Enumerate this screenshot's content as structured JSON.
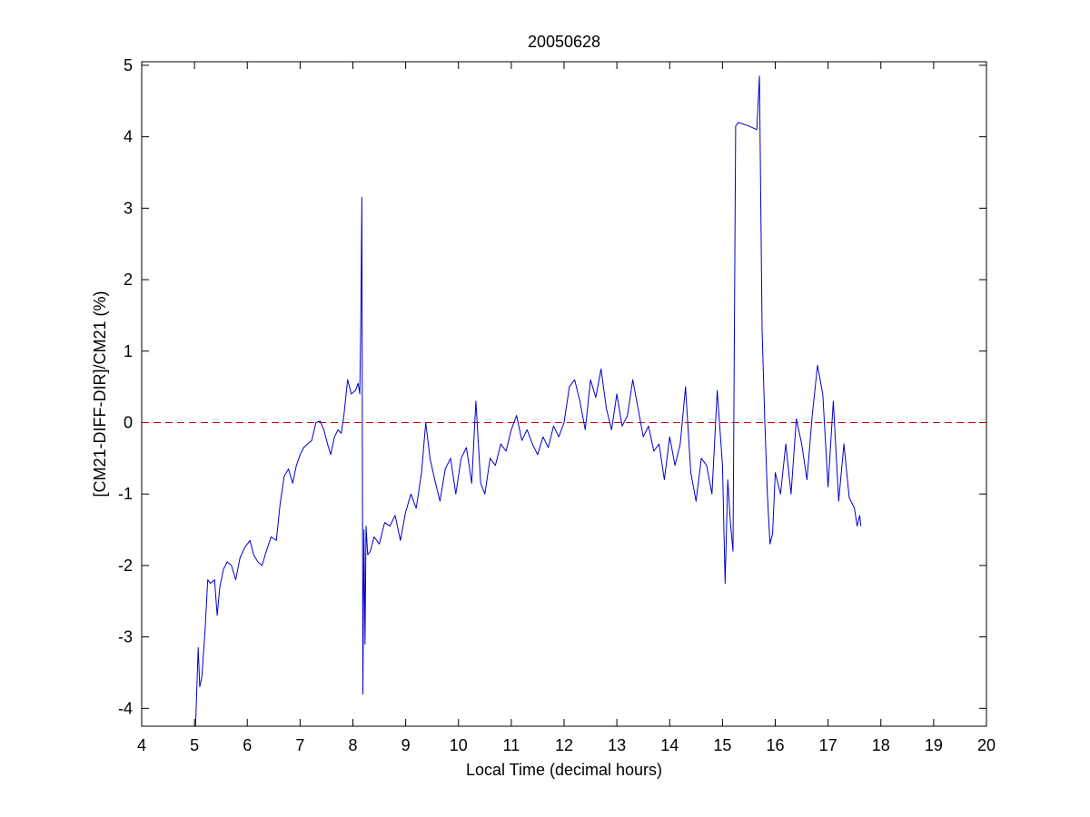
{
  "chart_data": {
    "type": "line",
    "title": "20050628",
    "xlabel": "Local Time (decimal hours)",
    "ylabel": "[CM21-DIFF-DIR]/CM21 (%)",
    "xlim": [
      4,
      20
    ],
    "ylim": [
      -4.25,
      5.05
    ],
    "xticks": [
      4,
      5,
      6,
      7,
      8,
      9,
      10,
      11,
      12,
      13,
      14,
      15,
      16,
      17,
      18,
      19,
      20
    ],
    "yticks": [
      -4,
      -3,
      -2,
      -1,
      0,
      1,
      2,
      3,
      4,
      5
    ],
    "grid": false,
    "legend": "none",
    "reference_line": {
      "y": 0,
      "style": "dashed",
      "color": "#cc0000"
    },
    "series": [
      {
        "color": "#0000cc",
        "x": [
          5.02,
          5.07,
          5.1,
          5.14,
          5.2,
          5.25,
          5.3,
          5.38,
          5.43,
          5.48,
          5.55,
          5.62,
          5.7,
          5.78,
          5.86,
          5.95,
          6.05,
          6.12,
          6.2,
          6.28,
          6.36,
          6.45,
          6.55,
          6.62,
          6.7,
          6.78,
          6.86,
          6.93,
          7.0,
          7.07,
          7.14,
          7.22,
          7.3,
          7.38,
          7.45,
          7.52,
          7.58,
          7.65,
          7.72,
          7.78,
          7.83,
          7.9,
          7.97,
          8.05,
          8.1,
          8.13,
          8.15,
          8.17,
          8.19,
          8.21,
          8.23,
          8.25,
          8.28,
          8.33,
          8.4,
          8.5,
          8.6,
          8.7,
          8.8,
          8.9,
          9.0,
          9.1,
          9.2,
          9.3,
          9.38,
          9.46,
          9.55,
          9.65,
          9.75,
          9.85,
          9.95,
          10.05,
          10.15,
          10.25,
          10.33,
          10.42,
          10.5,
          10.6,
          10.7,
          10.8,
          10.9,
          11.0,
          11.1,
          11.2,
          11.3,
          11.4,
          11.5,
          11.6,
          11.7,
          11.8,
          11.9,
          12.0,
          12.1,
          12.2,
          12.3,
          12.4,
          12.5,
          12.6,
          12.7,
          12.8,
          12.9,
          13.0,
          13.1,
          13.2,
          13.3,
          13.4,
          13.5,
          13.6,
          13.7,
          13.8,
          13.9,
          14.0,
          14.1,
          14.2,
          14.3,
          14.4,
          14.5,
          14.6,
          14.7,
          14.8,
          14.9,
          15.0,
          15.05,
          15.1,
          15.15,
          15.2,
          15.25,
          15.3,
          15.5,
          15.65,
          15.7,
          15.75,
          15.8,
          15.85,
          15.9,
          15.95,
          16.0,
          16.1,
          16.2,
          16.3,
          16.4,
          16.5,
          16.6,
          16.7,
          16.8,
          16.9,
          17.0,
          17.1,
          17.2,
          17.3,
          17.4,
          17.5,
          17.55,
          17.6,
          17.62
        ],
        "y": [
          -4.25,
          -3.15,
          -3.7,
          -3.55,
          -2.9,
          -2.2,
          -2.25,
          -2.2,
          -2.7,
          -2.3,
          -2.05,
          -1.95,
          -2.0,
          -2.2,
          -1.9,
          -1.75,
          -1.65,
          -1.85,
          -1.95,
          -2.0,
          -1.8,
          -1.6,
          -1.65,
          -1.15,
          -0.75,
          -0.65,
          -0.85,
          -0.6,
          -0.45,
          -0.35,
          -0.3,
          -0.25,
          0.0,
          0.02,
          -0.1,
          -0.3,
          -0.45,
          -0.2,
          -0.1,
          -0.15,
          0.1,
          0.6,
          0.4,
          0.45,
          0.55,
          0.4,
          1.4,
          3.15,
          -3.8,
          -1.5,
          -3.1,
          -1.45,
          -1.85,
          -1.8,
          -1.6,
          -1.7,
          -1.4,
          -1.45,
          -1.3,
          -1.65,
          -1.25,
          -1.0,
          -1.2,
          -0.7,
          0.0,
          -0.5,
          -0.8,
          -1.1,
          -0.65,
          -0.5,
          -1.0,
          -0.5,
          -0.35,
          -0.85,
          0.3,
          -0.85,
          -1.0,
          -0.5,
          -0.6,
          -0.3,
          -0.4,
          -0.1,
          0.1,
          -0.25,
          -0.1,
          -0.3,
          -0.45,
          -0.2,
          -0.35,
          -0.05,
          -0.2,
          0.0,
          0.5,
          0.6,
          0.3,
          -0.1,
          0.6,
          0.35,
          0.75,
          0.2,
          -0.1,
          0.4,
          -0.05,
          0.1,
          0.6,
          0.2,
          -0.2,
          -0.05,
          -0.4,
          -0.3,
          -0.8,
          -0.2,
          -0.6,
          -0.3,
          0.5,
          -0.7,
          -1.1,
          -0.5,
          -0.6,
          -1.0,
          0.45,
          -0.6,
          -2.25,
          -0.8,
          -1.4,
          -1.8,
          4.15,
          4.2,
          4.15,
          4.1,
          4.85,
          1.3,
          0.05,
          -1.0,
          -1.7,
          -1.55,
          -0.7,
          -1.0,
          -0.3,
          -1.0,
          0.05,
          -0.3,
          -0.8,
          0.1,
          0.8,
          0.4,
          -0.9,
          0.3,
          -1.1,
          -0.3,
          -1.05,
          -1.2,
          -1.45,
          -1.3,
          -1.45
        ]
      }
    ]
  }
}
